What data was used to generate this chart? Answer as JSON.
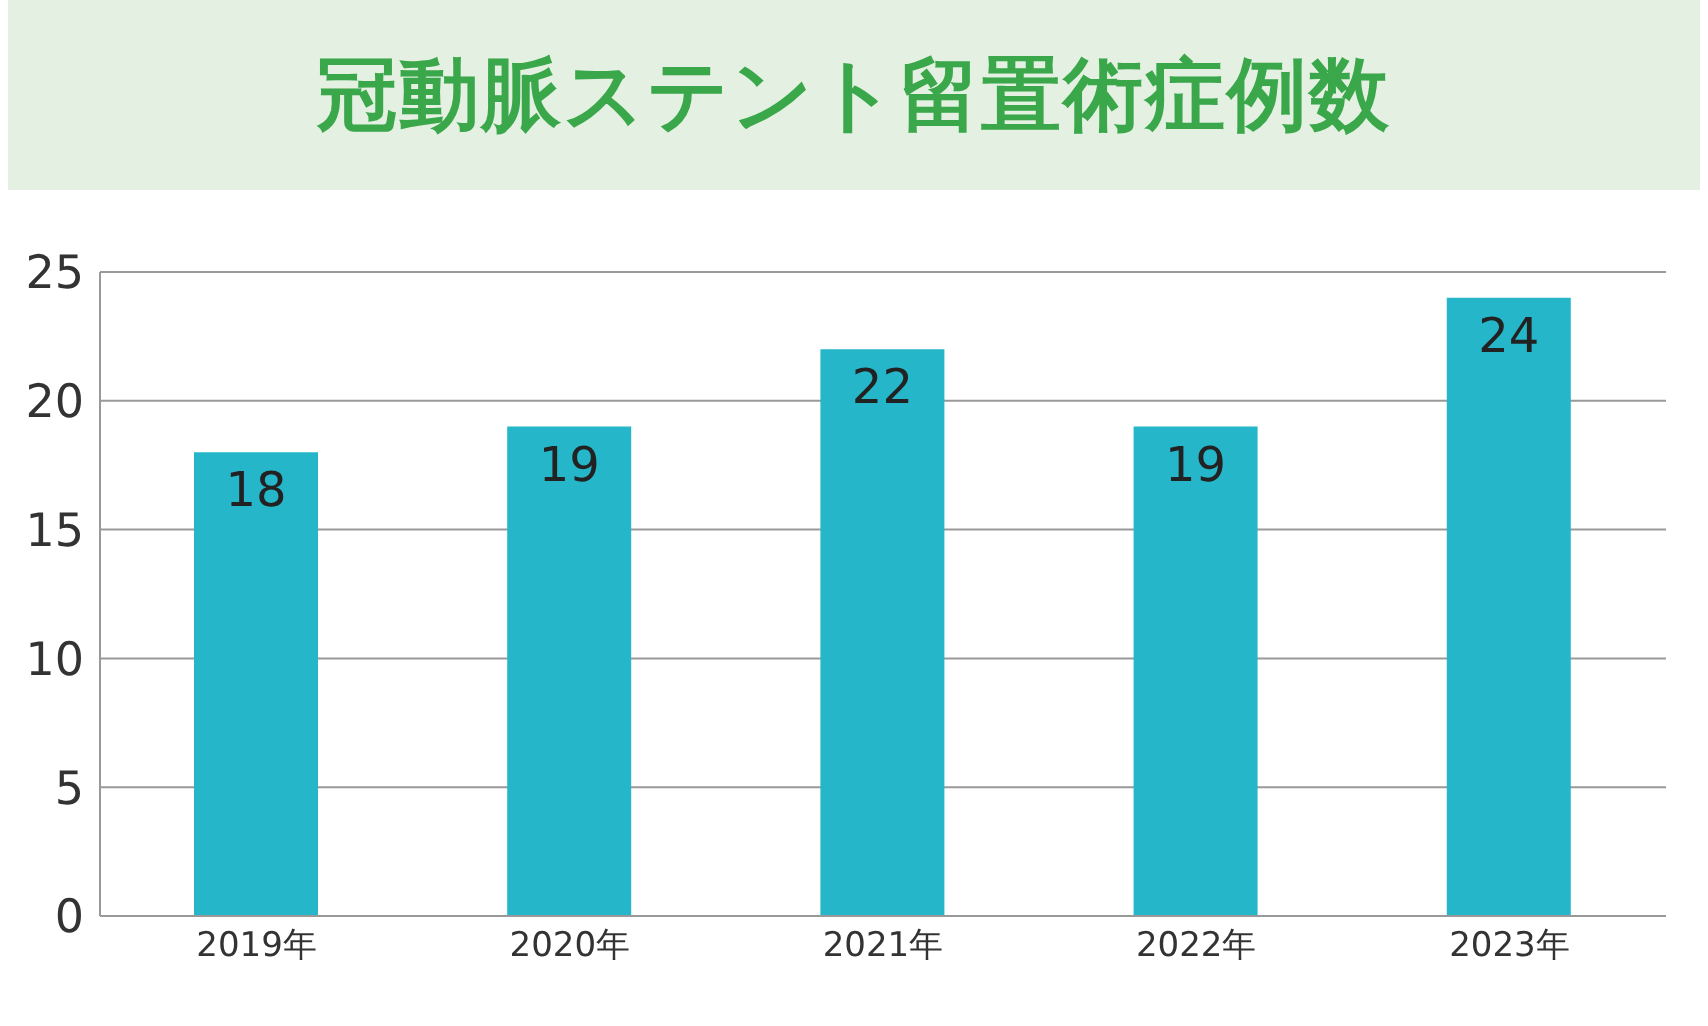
{
  "chart_data": {
    "type": "bar",
    "title": "冠動脈ステント留置術症例数",
    "categories": [
      "2019年",
      "2020年",
      "2021年",
      "2022年",
      "2023年"
    ],
    "values": [
      18,
      19,
      22,
      19,
      24
    ],
    "color": "#25b7c9",
    "ylim": [
      0,
      25
    ],
    "yticks": [
      0,
      5,
      10,
      15,
      20,
      25
    ],
    "grid": "y",
    "data_labels": true
  }
}
